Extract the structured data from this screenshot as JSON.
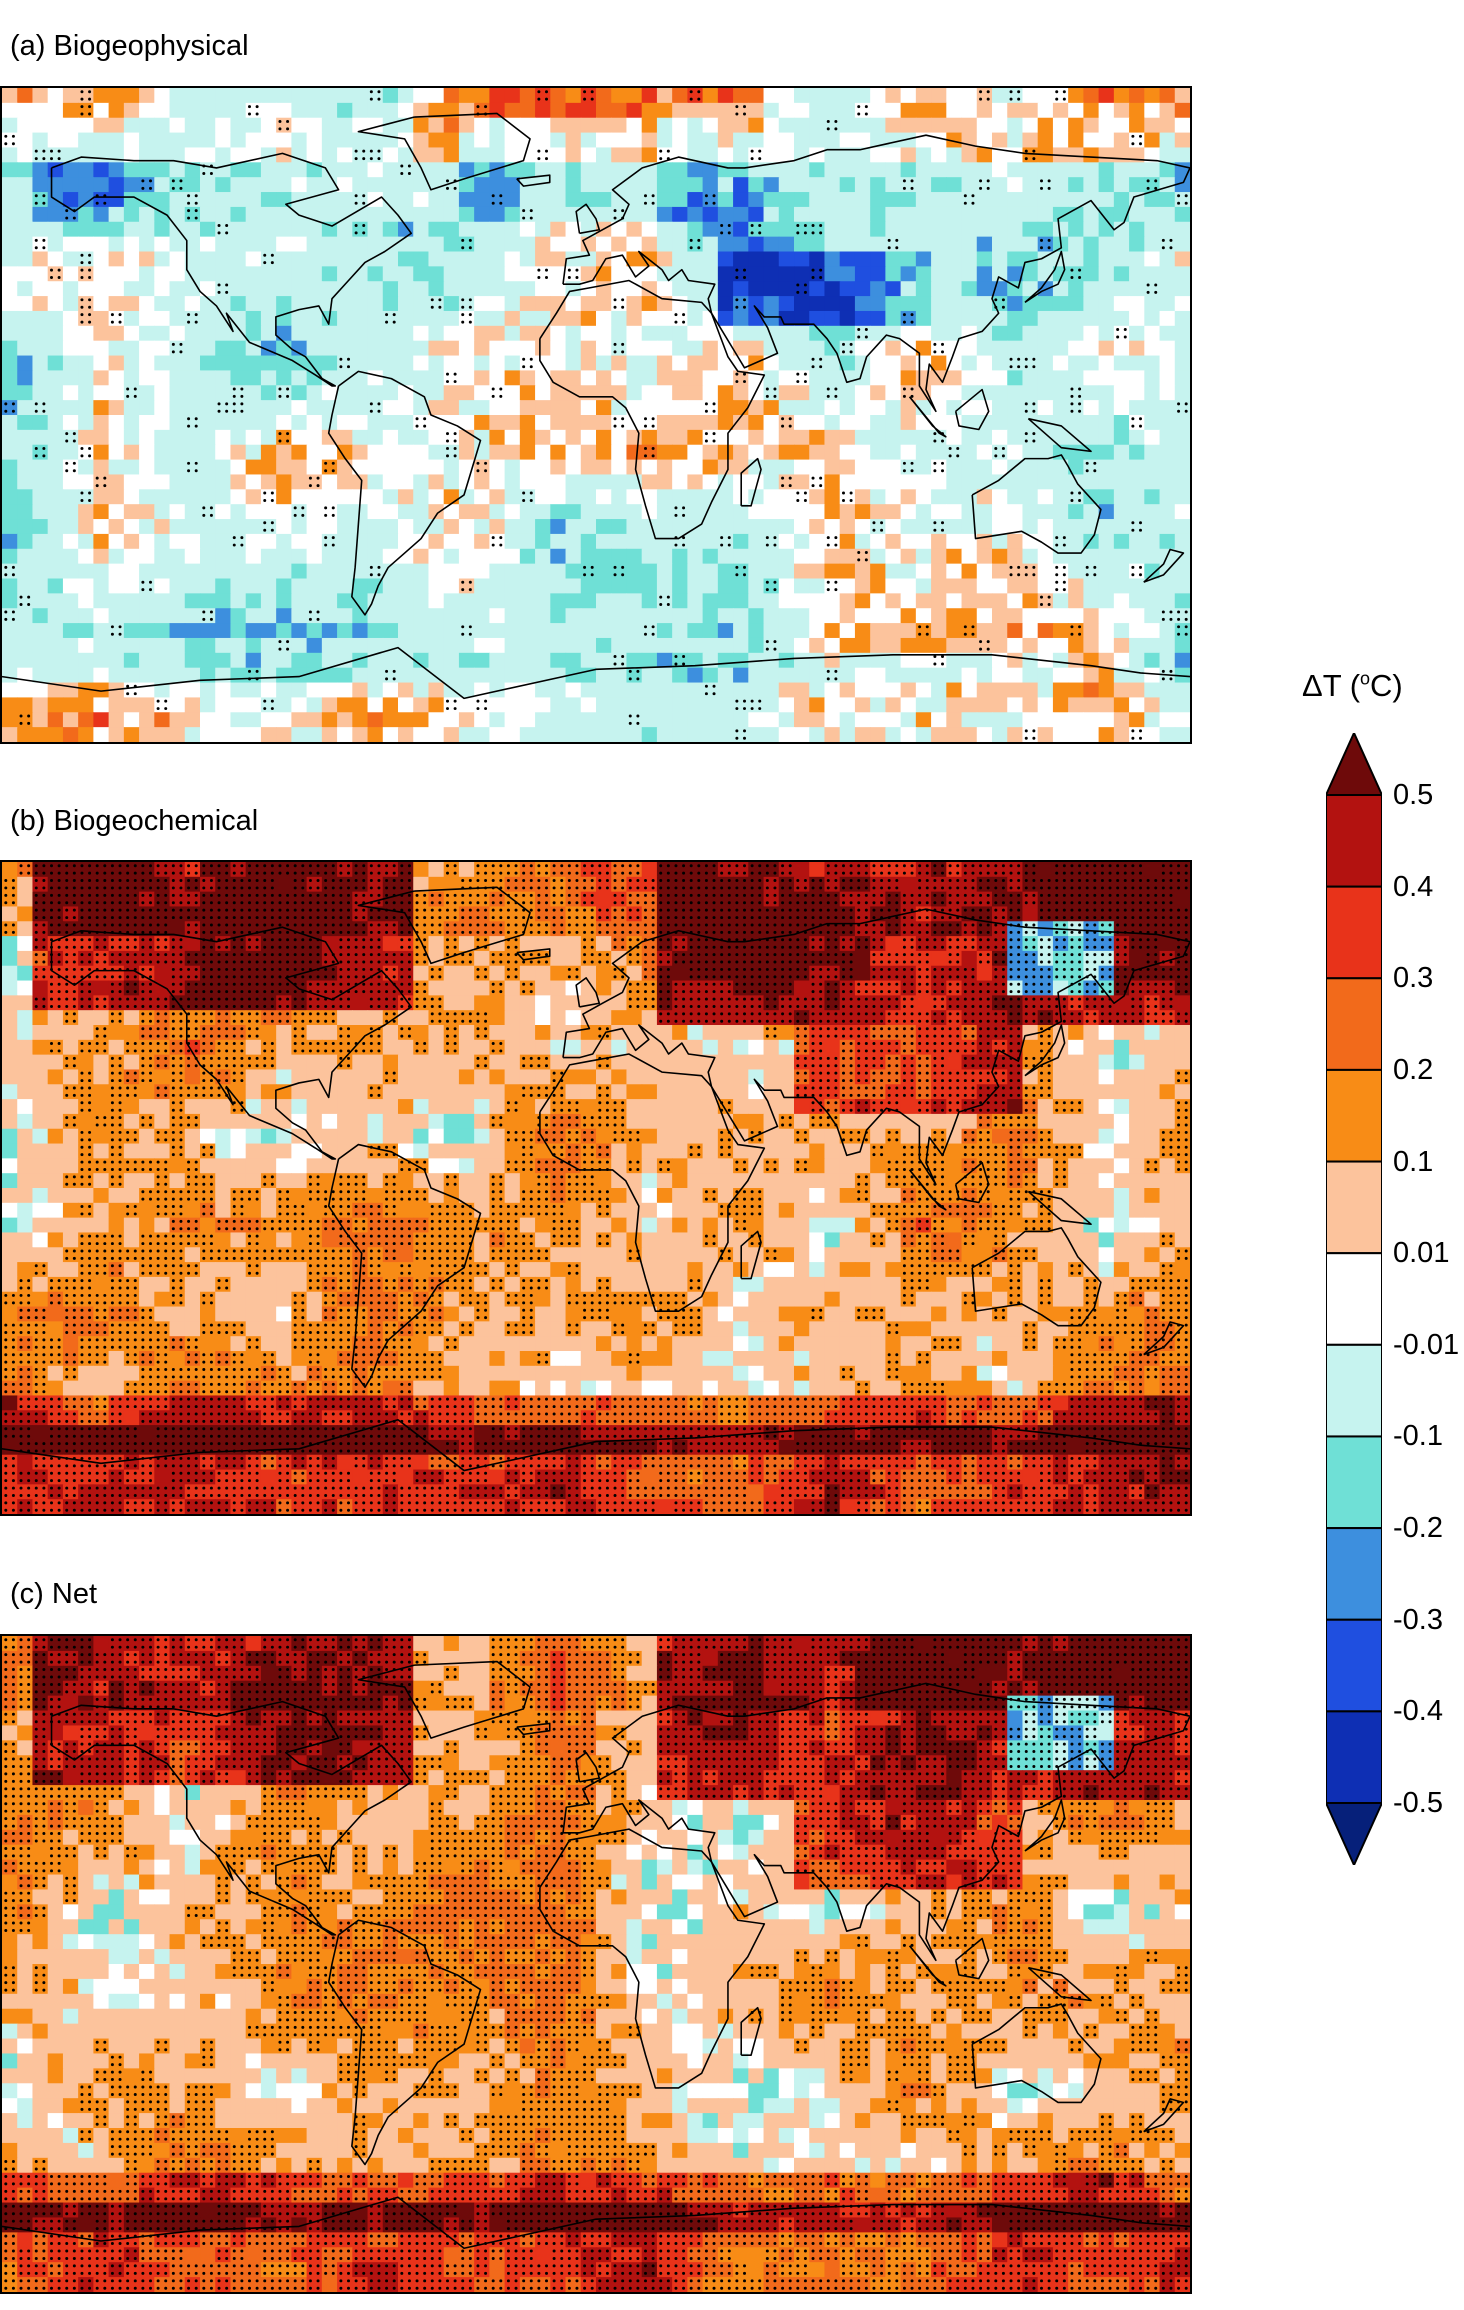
{
  "panels": [
    {
      "id": "a",
      "title": "(a) Biogeophysical",
      "dominant": "negative",
      "description_codes": [
        "-0.01",
        "-0.1",
        "-0.2",
        "-0.3",
        "-0.4",
        "0.01",
        "0.1",
        "0.2",
        "0.3",
        "0.4"
      ]
    },
    {
      "id": "b",
      "title": "(b) Biogeochemical",
      "dominant": "positive",
      "description_codes": [
        "0.1",
        "0.2",
        "0.3",
        "0.4",
        "0.5",
        "-0.1",
        "-0.2"
      ]
    },
    {
      "id": "c",
      "title": "(c) Net",
      "dominant": "positive",
      "description_codes": [
        "0.1",
        "0.2",
        "0.3",
        "0.4",
        "0.5",
        "-0.1",
        "-0.2"
      ]
    }
  ],
  "colorbar": {
    "title_main": "ΔT (",
    "title_sup": "o",
    "title_unit": "C)",
    "ticks": [
      "0.5",
      "0.4",
      "0.3",
      "0.2",
      "0.1",
      "0.01",
      "-0.01",
      "-0.1",
      "-0.2",
      "-0.3",
      "-0.4",
      "-0.5"
    ],
    "colors": [
      "#6e0a0a",
      "#b31210",
      "#e8331a",
      "#f26a1b",
      "#f88c16",
      "#fcc39c",
      "#ffffff",
      "#c6f3ef",
      "#6fe0d6",
      "#3d8fde",
      "#1f4fe0",
      "#0e2fb4",
      "#06207a"
    ]
  },
  "map_colors": {
    "coast": "#000000",
    "stipple": "#000000"
  }
}
